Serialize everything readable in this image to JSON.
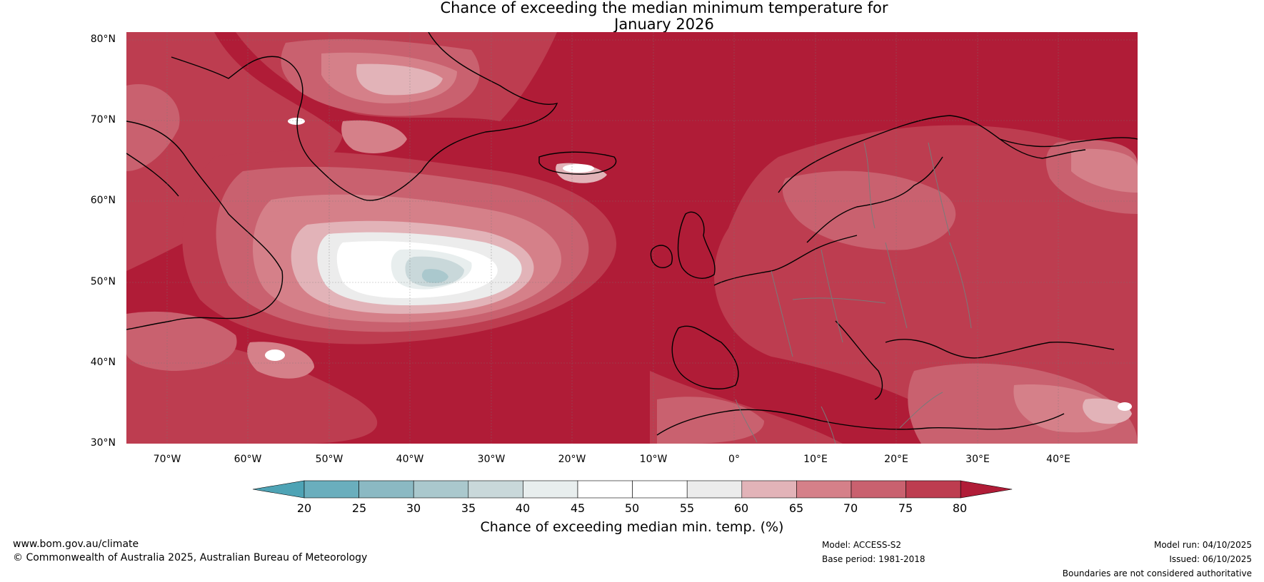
{
  "title": {
    "line1": "Chance of exceeding the median minimum temperature for",
    "line2": "January 2026"
  },
  "map": {
    "lat_labels": [
      "80°N",
      "70°N",
      "60°N",
      "50°N",
      "40°N",
      "30°N"
    ],
    "lon_labels": [
      "70°W",
      "60°W",
      "50°W",
      "40°W",
      "30°W",
      "20°W",
      "10°W",
      "0°",
      "10°E",
      "20°E",
      "30°E",
      "40°E"
    ],
    "extent": {
      "lon": [
        -75,
        50
      ],
      "lat": [
        30,
        81
      ]
    },
    "dominant_color": "#b01c37"
  },
  "colorbar": {
    "ticks": [
      "20",
      "25",
      "30",
      "35",
      "40",
      "45",
      "50",
      "55",
      "60",
      "65",
      "70",
      "75",
      "80"
    ],
    "colors": [
      "#4ea3b5",
      "#6aaebd",
      "#8bb9c3",
      "#aac8cd",
      "#c9d8da",
      "#e8eeee",
      "#ffffff",
      "#ffffff",
      "#ececec",
      "#e2b3b8",
      "#d58089",
      "#c9616f",
      "#bd3d50",
      "#b01c37"
    ],
    "label": "Chance of exceeding median min. temp. (%)"
  },
  "footer": {
    "website": "www.bom.gov.au/climate",
    "copyright": "© Commonwealth of Australia 2025, Australian Bureau of Meteorology",
    "model": "Model: ACCESS-S2",
    "base_period": "Base period: 1981-2018",
    "model_run": "Model run: 04/10/2025",
    "issued": "Issued: 06/10/2025",
    "disclaimer": "Boundaries are not considered authoritative"
  }
}
